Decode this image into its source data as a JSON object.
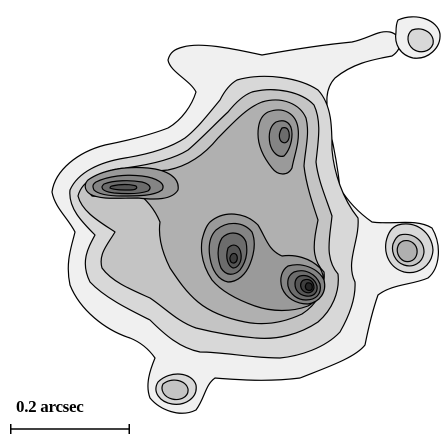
{
  "scale_bar": {
    "label": "0.2 arcsec"
  },
  "contour_levels": [
    "#f0f0f0",
    "#d8d8d8",
    "#c4c4c4",
    "#b0b0b0",
    "#9a9a9a",
    "#848484",
    "#6c6c6c",
    "#555555",
    "#3e3e3e",
    "#262626"
  ],
  "outline_color": "#000000"
}
